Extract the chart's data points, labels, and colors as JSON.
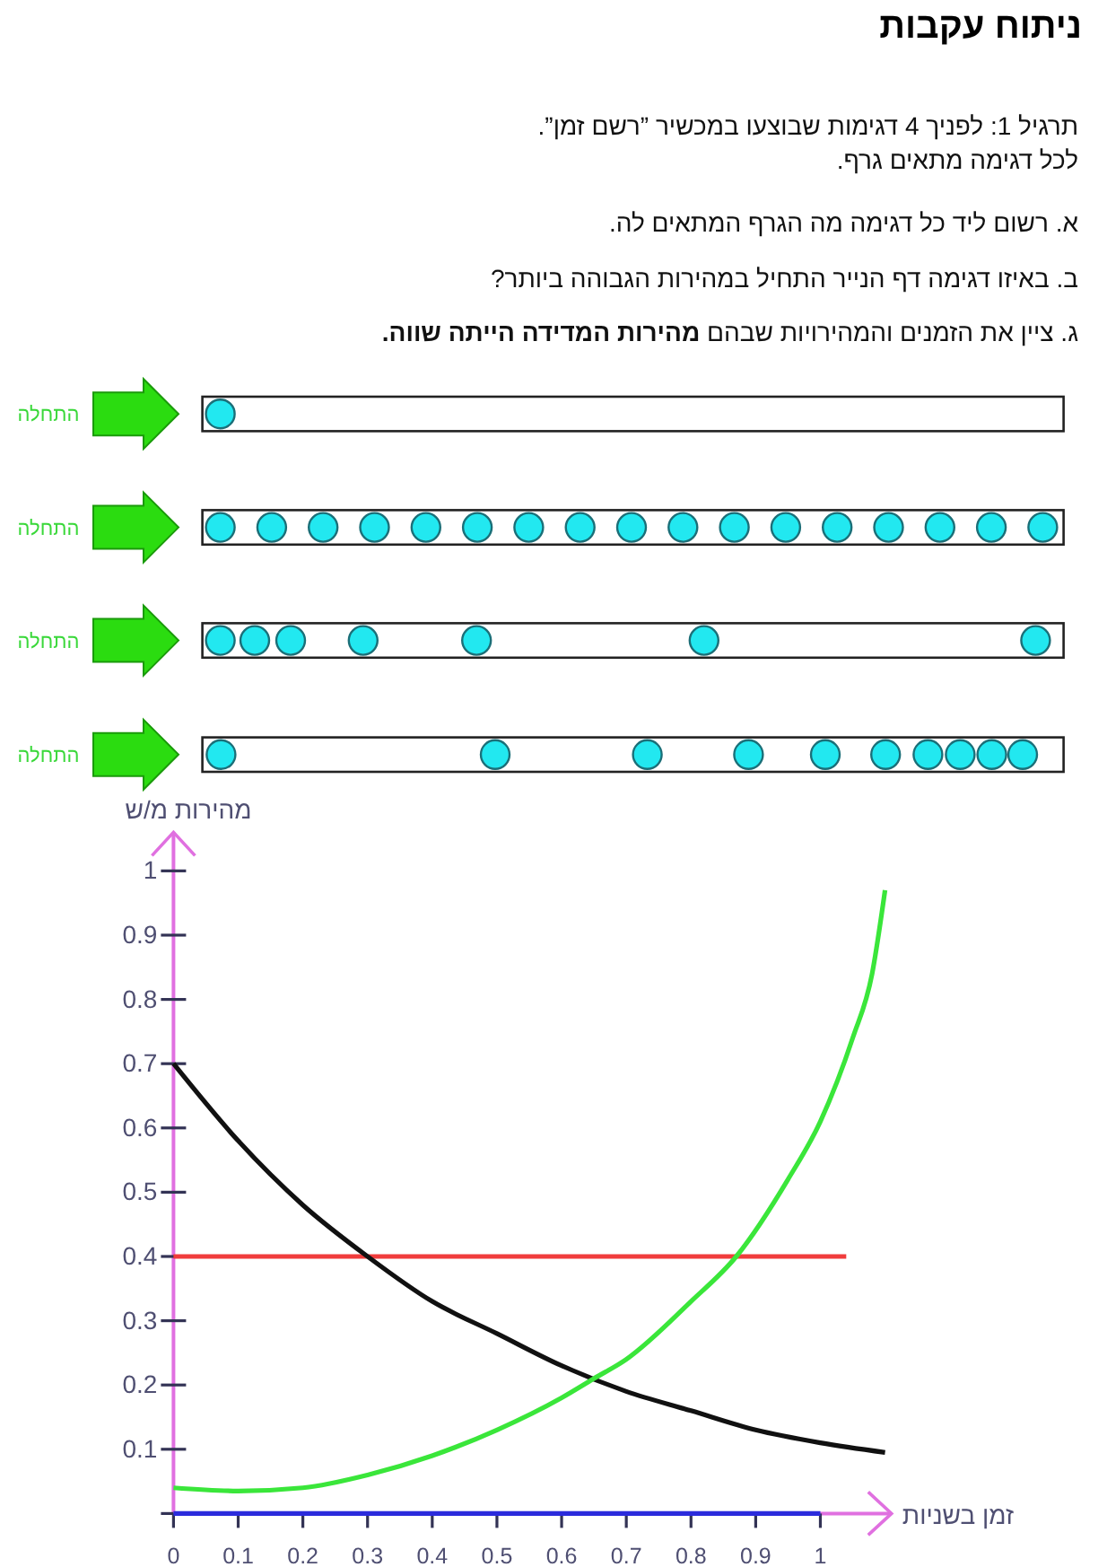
{
  "chart_data": {
    "type": "line",
    "title": "ניתוח עקבות",
    "annotations": [
      "תרגיל 1: לפניך 4 דגימות שבוצעו במכשיר ”רשם זמן”.",
      "לכל דגימה מתאים גרף.",
      "א. רשום ליד כל דגימה מה הגרף המתאים לה.",
      "ב. באיזו דגימה דף הנייר התחיל במהירות הגבוהה ביותר?",
      "ג.  ציין את הזמנים והמהירויות שבהם",
      "מהירות המדידה הייתה שווה.",
      "התחלה",
      "התחלה",
      "התחלה",
      "התחלה"
    ],
    "xlabel": "זמן בשניות",
    "ylabel": "מהירות מ/ש",
    "series": [
      {
        "color": "#2b2bdc",
        "x": [
          0,
          1
        ],
        "values": [
          0,
          0
        ]
      },
      {
        "color": "#f03c3c",
        "x": [
          0,
          1.04
        ],
        "values": [
          0.4,
          0.4
        ]
      },
      {
        "color": "#111111",
        "x": [
          0,
          0.1,
          0.2,
          0.3,
          0.4,
          0.5,
          0.6,
          0.7,
          0.8,
          0.9,
          1,
          1.1
        ],
        "values": [
          0.7,
          0.58,
          0.48,
          0.4,
          0.33,
          0.28,
          0.23,
          0.19,
          0.16,
          0.13,
          0.11,
          0.095
        ]
      },
      {
        "color": "#3ae63a",
        "x": [
          0,
          0.1,
          0.2,
          0.3,
          0.4,
          0.5,
          0.6,
          0.65,
          0.7,
          0.8,
          0.87,
          0.95,
          1,
          1.05,
          1.08,
          1.1
        ],
        "values": [
          0.04,
          0.035,
          0.04,
          0.06,
          0.09,
          0.13,
          0.18,
          0.21,
          0.24,
          0.33,
          0.4,
          0.52,
          0.61,
          0.74,
          0.84,
          0.97
        ]
      }
    ],
    "xlim": [
      0,
      1.11
    ],
    "ylim": [
      0,
      1.06
    ],
    "xticks": [
      0,
      0.1,
      0.2,
      0.3,
      0.4,
      0.5,
      0.6,
      0.7,
      0.8,
      0.9,
      1
    ],
    "yticks": [
      {
        "value": 0,
        "label": null
      },
      0.1,
      0.2,
      0.3,
      0.4,
      0.5,
      0.6,
      0.7,
      0.8,
      0.9,
      1
    ],
    "line_style": "solid"
  }
}
